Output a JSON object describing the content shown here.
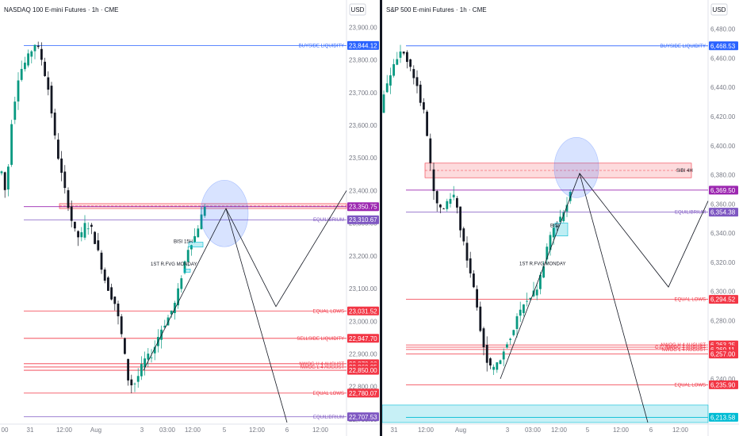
{
  "chart_data": [
    {
      "type": "candlestick",
      "title": "NASDAQ 100 E-mini Futures · 1h · CME",
      "currency": "USD",
      "ylim": [
        22690,
        23930
      ],
      "y_ticks": [
        22700,
        22800,
        22900,
        23000,
        23100,
        23200,
        23300,
        23400,
        23500,
        23600,
        23700,
        23800,
        23900
      ],
      "x_tick_labels": [
        "00",
        "31",
        "12:00",
        "Aug",
        "3",
        "03:00",
        "12:00",
        "5",
        "12:00",
        "6",
        "12:00"
      ],
      "levels": [
        {
          "label": "BUYSIDE LIQUIDITY",
          "value": 23844.12,
          "badge": "23,844.12",
          "color": "#2962ff"
        },
        {
          "label": "",
          "value": 23350.75,
          "badge": "23,350.75",
          "color": "#9c27b0"
        },
        {
          "label": "EQUILIBRIUM",
          "value": 23310.67,
          "badge": "23,310.67",
          "color": "#7e57c2"
        },
        {
          "label": "EQUAL LOWS",
          "value": 23031.52,
          "badge": "23,031.52",
          "color": "#f23645"
        },
        {
          "label": "SELLSIDE LIQUIDITY",
          "value": 22947.7,
          "badge": "22,947.70",
          "color": "#f23645"
        },
        {
          "label": "NWOG H 4 AUGUST",
          "value": 22870.0,
          "badge": "22,870.00",
          "color": "#f23645"
        },
        {
          "label": "NWOG L 4 AUGUST",
          "value": 22860.05,
          "badge": "22,860.05",
          "color": "#f23645"
        },
        {
          "label": "",
          "value": 22850.0,
          "badge": "22,850.00",
          "color": "#f23645"
        },
        {
          "label": "EQUAL LOWS",
          "value": 22780.07,
          "badge": "22,780.07",
          "color": "#f23645"
        },
        {
          "label": "EQUILIBRIUM",
          "value": 22707.53,
          "badge": "22,707.53",
          "color": "#7e57c2"
        }
      ],
      "annotations": [
        {
          "text": "BISI 15H",
          "value": 23240
        },
        {
          "text": "1ST R.FVG MONDAY",
          "value": 23170
        }
      ]
    },
    {
      "type": "candlestick",
      "title": "S&P 500 E-mini Futures · 1h · CME",
      "currency": "USD",
      "ylim": [
        6210,
        6488
      ],
      "y_ticks": [
        6240,
        6260,
        6280,
        6300,
        6320,
        6340,
        6360,
        6380,
        6400,
        6420,
        6440,
        6460,
        6480
      ],
      "x_tick_labels": [
        "31",
        "12:00",
        "Aug",
        "3",
        "03:00",
        "12:00",
        "5",
        "12:00",
        "6",
        "12:00"
      ],
      "levels": [
        {
          "label": "BUYSIDE LIQUIDITY",
          "value": 6468.53,
          "badge": "6,468.53",
          "color": "#2962ff"
        },
        {
          "label": "",
          "value": 6369.5,
          "badge": "6,369.50",
          "color": "#9c27b0"
        },
        {
          "label": "EQUILIBRIUM",
          "value": 6354.38,
          "badge": "6,354.38",
          "color": "#7e57c2"
        },
        {
          "label": "EQUAL LOWS",
          "value": 6294.52,
          "badge": "6,294.52",
          "color": "#f23645"
        },
        {
          "label": "NWOG H 4 AUGUST",
          "value": 6263.25,
          "badge": "6,263.25",
          "color": "#f23645"
        },
        {
          "label": "C.E. NWOG 4 AUGUST",
          "value": 6261.7,
          "badge": "",
          "color": "#f23645"
        },
        {
          "label": "NWOG L 4 AUGUST",
          "value": 6260.11,
          "badge": "6,260.11",
          "color": "#f23645"
        },
        {
          "label": "",
          "value": 6257.0,
          "badge": "6,257.00",
          "color": "#f23645"
        },
        {
          "label": "EQUAL LOWS",
          "value": 6235.9,
          "badge": "6,235.90",
          "color": "#f23645"
        },
        {
          "label": "",
          "value": 6213.58,
          "badge": "6,213.58",
          "color": "#00bcd4"
        }
      ],
      "annotations": [
        {
          "text": "SIBI 4H",
          "value": 6382
        },
        {
          "text": "BISI",
          "value": 6344
        },
        {
          "text": "1ST R.FVG MONDAY",
          "value": 6318
        }
      ]
    }
  ]
}
